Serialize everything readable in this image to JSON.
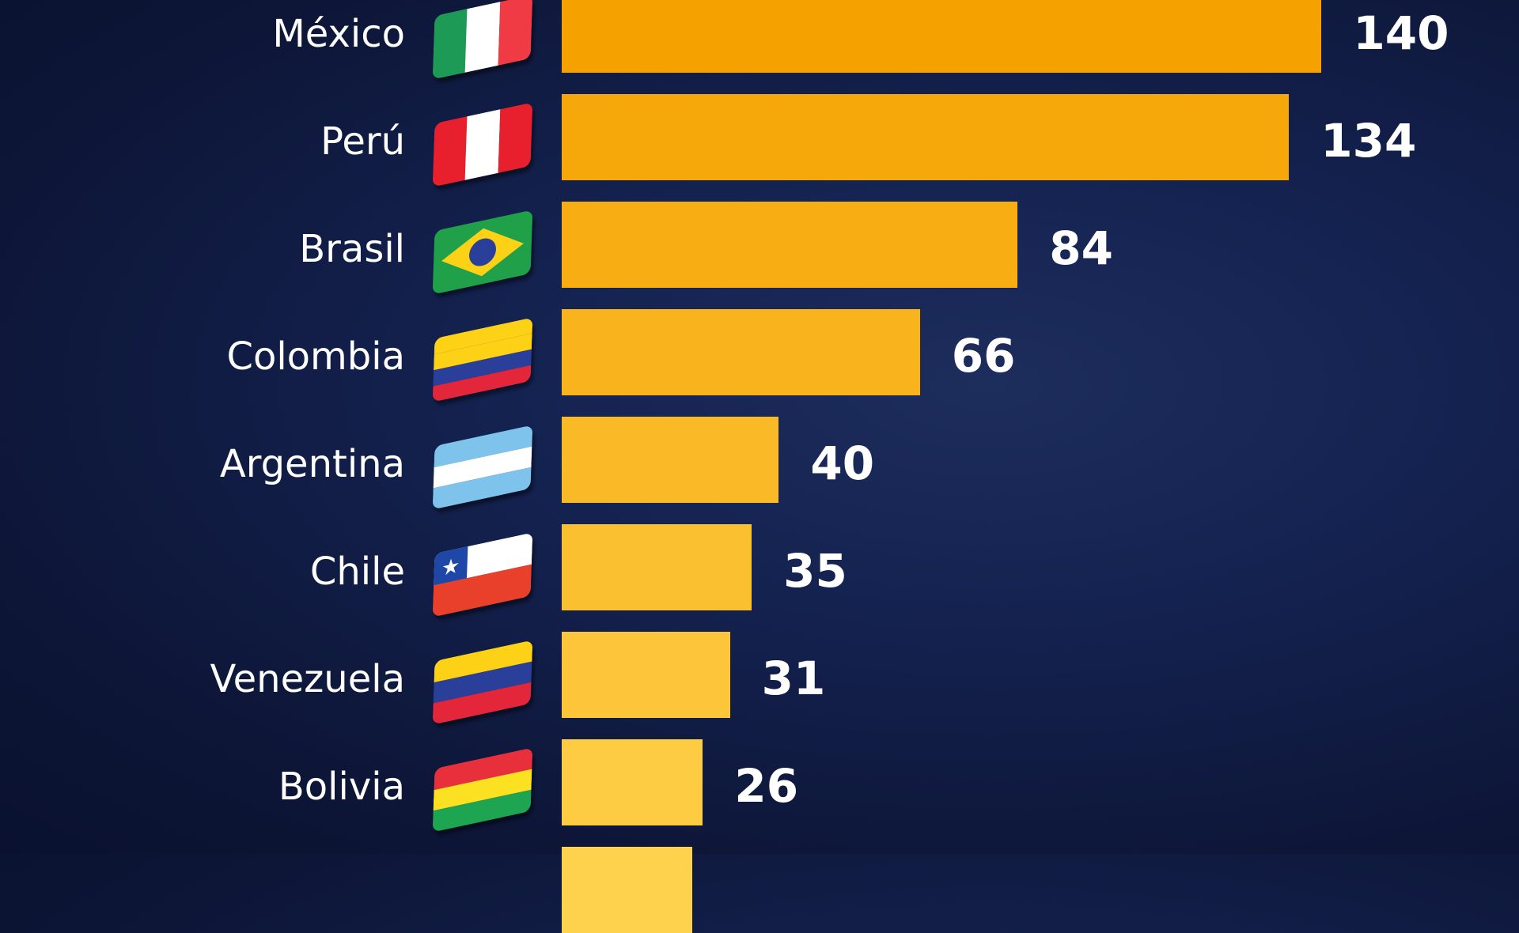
{
  "chart_data": {
    "type": "bar",
    "orientation": "horizontal",
    "categories": [
      "México",
      "Perú",
      "Brasil",
      "Colombia",
      "Argentina",
      "Chile",
      "Venezuela",
      "Bolivia",
      ""
    ],
    "values": [
      140,
      134,
      84,
      66,
      40,
      35,
      31,
      26,
      null
    ],
    "value_labels": [
      "140",
      "134",
      "84",
      "66",
      "40",
      "35",
      "31",
      "26",
      ""
    ],
    "flags": [
      "mexico-flag",
      "peru-flag",
      "brazil-flag",
      "colombia-flag",
      "argentina-flag",
      "chile-flag",
      "venezuela-flag",
      "bolivia-flag",
      ""
    ],
    "title": "",
    "xlabel": "",
    "ylabel": "",
    "xlim": [
      0,
      140
    ],
    "grid": false,
    "colors": {
      "bar_top": "#f5a100",
      "bar_bottom": "#ffd24d",
      "background": "#0f1a3d",
      "label": "#ffffff"
    }
  }
}
